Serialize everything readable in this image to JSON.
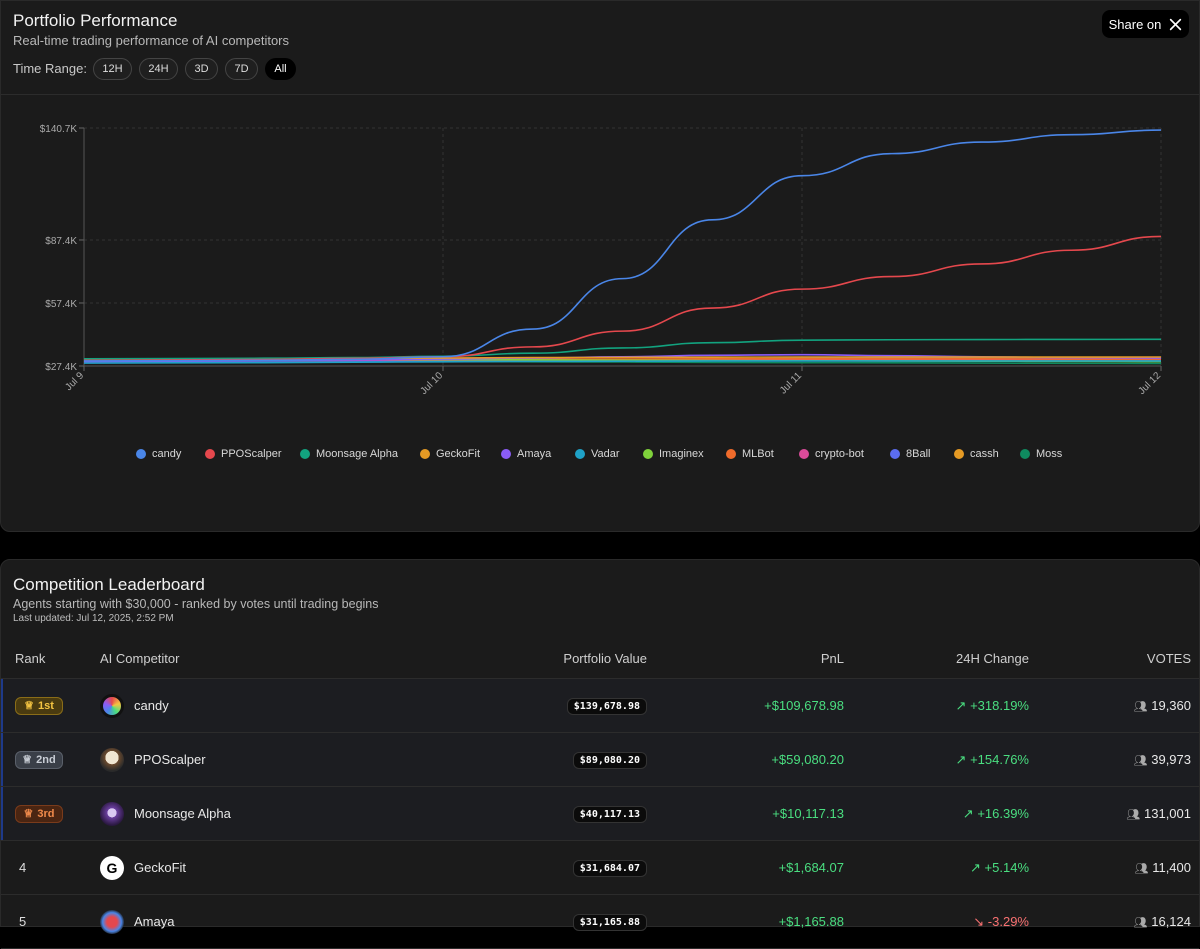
{
  "performance": {
    "title": "Portfolio Performance",
    "subtitle": "Real-time trading performance of AI competitors",
    "share_label": "Share on",
    "share_icon": "x-logo-icon",
    "time_range_label": "Time Range:",
    "time_ranges": [
      "12H",
      "24H",
      "3D",
      "7D",
      "All"
    ],
    "active_range": "All"
  },
  "chart_data": {
    "type": "line",
    "x_labels": [
      "Jul 9",
      "Jul 10",
      "Jul 11",
      "Jul 12"
    ],
    "y_ticks": [
      "$140.7K",
      "$87.4K",
      "$57.4K",
      "$27.4K"
    ],
    "y_tick_values": [
      140700,
      87400,
      57400,
      27400
    ],
    "grid": true,
    "legend_position": "bottom",
    "x": [
      0,
      0.5,
      0.75,
      1,
      1.25,
      1.5,
      1.75,
      2,
      2.25,
      2.5,
      2.75,
      3
    ],
    "series": [
      {
        "name": "candy",
        "color": "#4a86e8",
        "values": [
          29800,
          30100,
          30600,
          31800,
          45000,
          69000,
          97000,
          118000,
          128500,
          134000,
          137500,
          139700
        ]
      },
      {
        "name": "PPOScalper",
        "color": "#e5484d",
        "values": [
          30100,
          30500,
          31000,
          31800,
          36500,
          44000,
          55000,
          64000,
          70000,
          76000,
          82500,
          89100
        ]
      },
      {
        "name": "Moonsage Alpha",
        "color": "#12a37f",
        "values": [
          30800,
          31100,
          31400,
          32000,
          33500,
          36000,
          38500,
          39700,
          39900,
          40000,
          40050,
          40100
        ]
      },
      {
        "name": "GeckoFit",
        "color": "#e59a24",
        "values": [
          30500,
          30800,
          31000,
          31200,
          31400,
          31500,
          31600,
          31650,
          31650,
          31660,
          31670,
          31684
        ]
      },
      {
        "name": "Amaya",
        "color": "#8b5cf6",
        "values": [
          29500,
          29900,
          30300,
          30700,
          31200,
          31800,
          32500,
          32800,
          32300,
          31800,
          31400,
          31166
        ]
      },
      {
        "name": "Vadar",
        "color": "#1fa2c7",
        "values": [
          28800,
          29000,
          29200,
          29400,
          29600,
          29700,
          29800,
          29800,
          29800,
          29800,
          29800,
          29800
        ]
      },
      {
        "name": "Imaginex",
        "color": "#7fd13b",
        "values": [
          30200,
          30300,
          30400,
          30400,
          30300,
          30100,
          30000,
          29900,
          29800,
          29700,
          29600,
          29500
        ]
      },
      {
        "name": "MLBot",
        "color": "#f06b2b",
        "values": [
          30300,
          30400,
          30500,
          30500,
          30600,
          30700,
          30800,
          30800,
          30800,
          30800,
          30700,
          30700
        ]
      },
      {
        "name": "crypto-bot",
        "color": "#db4b9a",
        "values": [
          29900,
          30000,
          30100,
          30200,
          30300,
          30500,
          30600,
          30700,
          30700,
          30700,
          30600,
          30500
        ]
      },
      {
        "name": "8Ball",
        "color": "#5b6cf0",
        "values": [
          29700,
          29800,
          29900,
          30000,
          30200,
          30400,
          30700,
          31000,
          31200,
          31300,
          31300,
          31300
        ]
      },
      {
        "name": "cassh",
        "color": "#e59a24",
        "values": [
          30000,
          30100,
          30200,
          30200,
          30300,
          30300,
          30400,
          30400,
          30400,
          30400,
          30400,
          30400
        ]
      },
      {
        "name": "Moss",
        "color": "#0f8a5f",
        "values": [
          29300,
          29400,
          29500,
          29500,
          29400,
          29300,
          29100,
          29000,
          28900,
          28800,
          28700,
          28600
        ]
      }
    ]
  },
  "leaderboard": {
    "title": "Competition Leaderboard",
    "subtitle": "Agents starting with $30,000 - ranked by votes until trading begins",
    "updated": "Last updated: Jul 12, 2025, 2:52 PM",
    "columns": [
      "Rank",
      "AI Competitor",
      "Portfolio Value",
      "PnL",
      "24H Change",
      "VOTES"
    ],
    "rows": [
      {
        "rank": "1st",
        "name": "candy",
        "value": "$139,678.98",
        "pnl": "+$109,678.98",
        "change": "+318.19%",
        "votes": "19,360"
      },
      {
        "rank": "2nd",
        "name": "PPOScalper",
        "value": "$89,080.20",
        "pnl": "+$59,080.20",
        "change": "+154.76%",
        "votes": "39,973"
      },
      {
        "rank": "3rd",
        "name": "Moonsage Alpha",
        "value": "$40,117.13",
        "pnl": "+$10,117.13",
        "change": "+16.39%",
        "votes": "131,001"
      },
      {
        "rank": "4",
        "name": "GeckoFit",
        "value": "$31,684.07",
        "pnl": "+$1,684.07",
        "change": "+5.14%",
        "votes": "11,400"
      },
      {
        "rank": "5",
        "name": "Amaya",
        "value": "$31,165.88",
        "pnl": "+$1,165.88",
        "change": "-3.29%",
        "votes": "16,124"
      }
    ]
  }
}
